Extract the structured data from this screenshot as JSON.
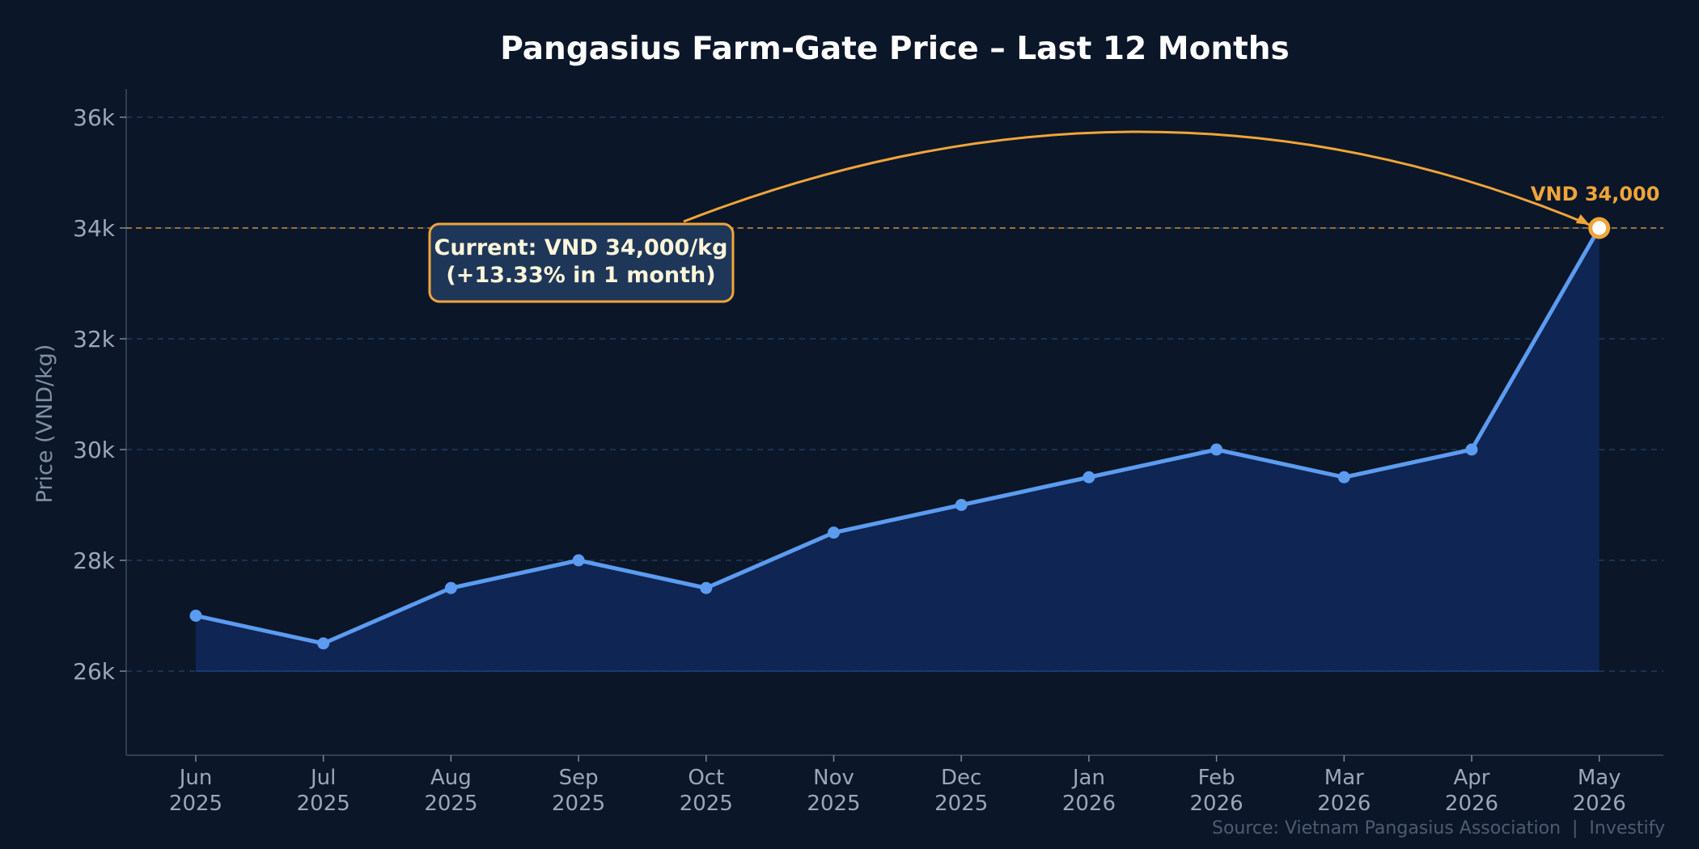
{
  "chart_data": {
    "type": "area",
    "title": "Pangasius Farm-Gate Price – Last 12 Months",
    "ylabel": "Price (VND/kg)",
    "xlabel": "",
    "categories": [
      [
        "Jun",
        "2025"
      ],
      [
        "Jul",
        "2025"
      ],
      [
        "Aug",
        "2025"
      ],
      [
        "Sep",
        "2025"
      ],
      [
        "Oct",
        "2025"
      ],
      [
        "Nov",
        "2025"
      ],
      [
        "Dec",
        "2025"
      ],
      [
        "Jan",
        "2026"
      ],
      [
        "Feb",
        "2026"
      ],
      [
        "Mar",
        "2026"
      ],
      [
        "Apr",
        "2026"
      ],
      [
        "May",
        "2026"
      ]
    ],
    "values": [
      27000,
      26500,
      27500,
      28000,
      27500,
      28500,
      29000,
      29500,
      30000,
      29500,
      30000,
      34000
    ],
    "ylim": [
      24500,
      36500
    ],
    "yticks": [
      26000,
      28000,
      30000,
      32000,
      34000,
      36000
    ],
    "ytick_labels": [
      "26k",
      "28k",
      "30k",
      "32k",
      "34k",
      "36k"
    ],
    "grid": true,
    "reference_line": 34000,
    "highlight_label": "VND 34,000",
    "callout": {
      "line1": "Current: VND 34,000/kg",
      "line2": "(+13.33% in 1 month)"
    },
    "source": "Source: Vietnam Pangasius Association  |  Investify",
    "colors": {
      "background": "#0b1628",
      "line": "#5b9cf0",
      "fill": "#0f2553",
      "accent": "#f0a53a",
      "grid": "#1f3a5f",
      "callout_bg": "#1e3759"
    }
  }
}
